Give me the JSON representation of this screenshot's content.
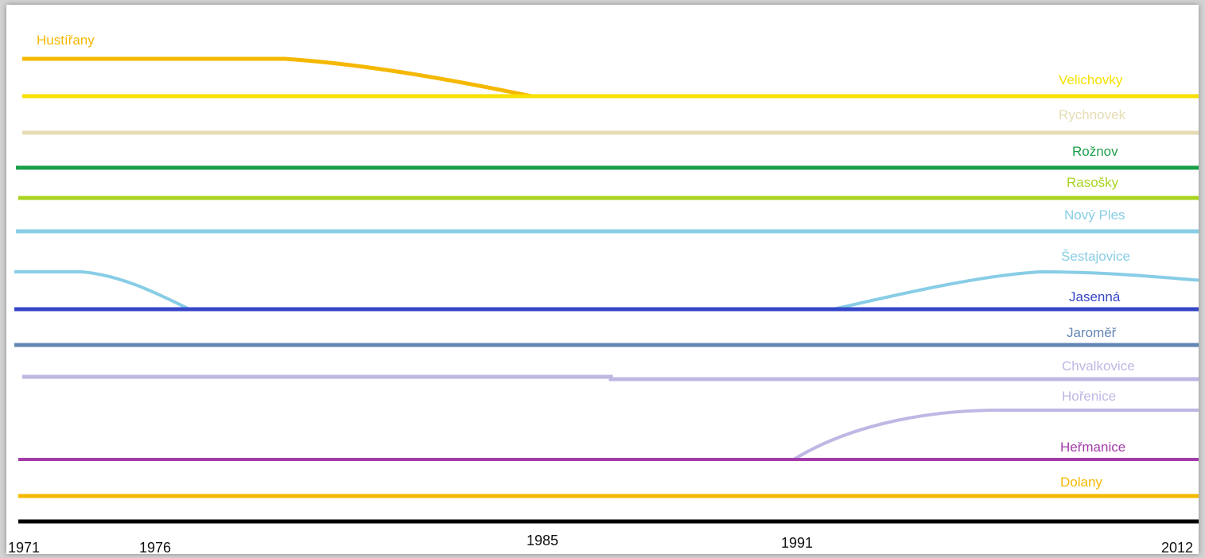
{
  "diagram": {
    "axis": {
      "ticks": [
        {
          "label": "1971",
          "year": 1971
        },
        {
          "label": "1976",
          "year": 1976
        },
        {
          "label": "1985",
          "year": 1985
        },
        {
          "label": "1991",
          "year": 1991
        },
        {
          "label": "2012",
          "year": 2012
        }
      ]
    },
    "lines": [
      {
        "name": "Hustířany",
        "color": "#f5b800"
      },
      {
        "name": "Velichovky",
        "color": "#f5b800"
      },
      {
        "name": "Rychnovek",
        "color": "#f7e000"
      },
      {
        "name": "Rožnov",
        "color": "#e6dcb4"
      },
      {
        "name": "Rasošky",
        "color": "#1aa04a"
      },
      {
        "name": "Nový Ples",
        "color": "#a8d41e"
      },
      {
        "name": "Šestajovice",
        "color": "#88cde6"
      },
      {
        "name": "Jasenná",
        "color": "#88cde6"
      },
      {
        "name": "Jaroměř",
        "color": "#3646c8"
      },
      {
        "name": "Chvalkovice",
        "color": "#6486b4"
      },
      {
        "name": "Hořenice",
        "color": "#beb8e4"
      },
      {
        "name": "Heřmanice",
        "color": "#beb8e4"
      },
      {
        "name": "Dolany",
        "color": "#a23ca8"
      }
    ]
  }
}
